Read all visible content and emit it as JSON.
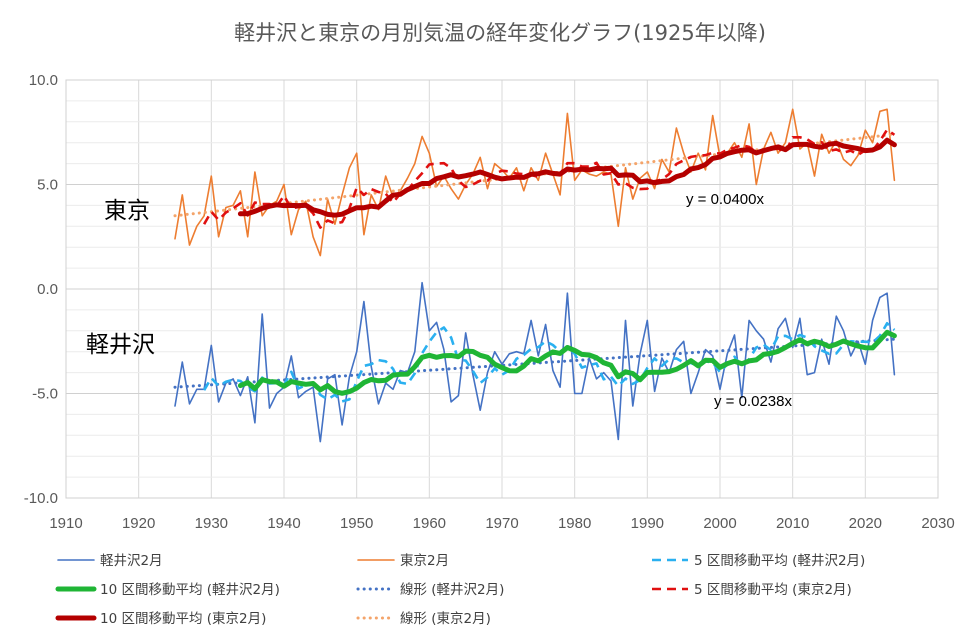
{
  "chart_data": {
    "type": "line",
    "title": "軽井沢と東京の月別気温の経年変化グラフ(1925年以降)",
    "xlim": [
      1910,
      2030
    ],
    "ylim": [
      -10,
      10
    ],
    "x_ticks": [
      "1910",
      "1920",
      "1930",
      "1940",
      "1950",
      "1960",
      "1970",
      "1980",
      "1990",
      "2000",
      "2010",
      "2020",
      "2030"
    ],
    "y_ticks": [
      "10.0",
      "5.0",
      "0.0",
      "-5.0",
      "-10.0"
    ],
    "grid": true,
    "legend_position": "bottom",
    "annotations": [
      {
        "label": "東京",
        "kind": "place"
      },
      {
        "label": "軽井沢",
        "kind": "place"
      },
      {
        "label": "y = 0.0400x",
        "kind": "eq"
      },
      {
        "label": "y = 0.0238x",
        "kind": "eq"
      }
    ],
    "x_start": 1925,
    "series": [
      {
        "name": "軽井沢2月",
        "color": "#4472C4",
        "style": "thin",
        "values": [
          -5.6,
          -3.5,
          -5.5,
          -4.8,
          -4.8,
          -2.7,
          -5.4,
          -4.5,
          -4.3,
          -5.1,
          -4.2,
          -6.4,
          -1.2,
          -5.7,
          -5.0,
          -4.7,
          -3.2,
          -5.2,
          -4.9,
          -4.7,
          -7.3,
          -4.3,
          -4.1,
          -6.5,
          -4.2,
          -3.0,
          -0.6,
          -3.7,
          -5.5,
          -4.5,
          -4.8,
          -3.9,
          -4.0,
          -3.0,
          0.3,
          -2.0,
          -1.6,
          -2.9,
          -5.4,
          -5.1,
          -2.1,
          -4.1,
          -5.8,
          -4.0,
          -3.0,
          -3.6,
          -3.1,
          -3.0,
          -3.1,
          -1.5,
          -3.2,
          -1.7,
          -3.9,
          -4.7,
          -0.2,
          -5.0,
          -5.0,
          -3.3,
          -4.3,
          -4.0,
          -4.4,
          -7.2,
          -1.5,
          -5.6,
          -3.1,
          -1.5,
          -4.9,
          -3.3,
          -4.0,
          -2.9,
          -2.5,
          -5.0,
          -4.0,
          -2.9,
          -3.2,
          -4.8,
          -3.1,
          -2.2,
          -5.2,
          -1.5,
          -2.0,
          -2.4,
          -3.5,
          -1.9,
          -1.4,
          -2.8,
          -1.4,
          -4.1,
          -4.0,
          -2.4,
          -3.6,
          -1.3,
          -2.0,
          -3.2,
          -2.5,
          -3.6,
          -1.5,
          -0.4,
          -0.2,
          -4.1
        ]
      },
      {
        "name": "東京2月",
        "color": "#ED7D31",
        "style": "thin",
        "values": [
          2.4,
          4.5,
          2.1,
          3.0,
          3.5,
          5.4,
          2.5,
          3.9,
          4.0,
          4.7,
          2.5,
          5.6,
          3.5,
          4.0,
          4.2,
          5.0,
          2.6,
          3.8,
          4.2,
          2.5,
          1.6,
          4.3,
          3.1,
          4.5,
          5.8,
          6.5,
          2.6,
          4.5,
          3.8,
          5.4,
          4.4,
          4.7,
          5.3,
          6.0,
          7.3,
          6.5,
          4.9,
          5.4,
          4.8,
          4.3,
          5.0,
          5.5,
          6.3,
          4.8,
          6.0,
          5.7,
          5.3,
          5.8,
          4.7,
          5.8,
          5.2,
          6.5,
          5.5,
          4.5,
          8.4,
          5.2,
          5.7,
          5.5,
          5.4,
          5.6,
          5.5,
          3.0,
          5.8,
          4.3,
          5.3,
          5.6,
          4.8,
          6.2,
          5.6,
          7.7,
          6.5,
          5.6,
          6.5,
          5.7,
          8.3,
          6.3,
          6.5,
          7.0,
          6.3,
          7.9,
          5.0,
          6.7,
          7.5,
          6.5,
          7.0,
          8.6,
          6.7,
          7.0,
          5.4,
          7.4,
          6.5,
          7.1,
          6.2,
          5.9,
          6.4,
          7.6,
          7.0,
          8.5,
          8.6,
          5.2
        ]
      },
      {
        "name": "5 区間移動平均 (軽井沢2月)",
        "color": "#2AB0F0",
        "style": "dash"
      },
      {
        "name": "10 区間移動平均 (軽井沢2月)",
        "color": "#1FB535",
        "style": "thick"
      },
      {
        "name": "線形 (軽井沢2月)",
        "color": "#4472C4",
        "style": "dot",
        "trend": [
          -4.7,
          -2.4
        ]
      },
      {
        "name": "5 区間移動平均 (東京2月)",
        "color": "#E01010",
        "style": "dash"
      },
      {
        "name": "10 区間移動平均 (東京2月)",
        "color": "#B40000",
        "style": "thick"
      },
      {
        "name": "線形 (東京2月)",
        "color": "#F4A46A",
        "style": "dot",
        "trend": [
          3.5,
          7.4
        ]
      }
    ]
  }
}
